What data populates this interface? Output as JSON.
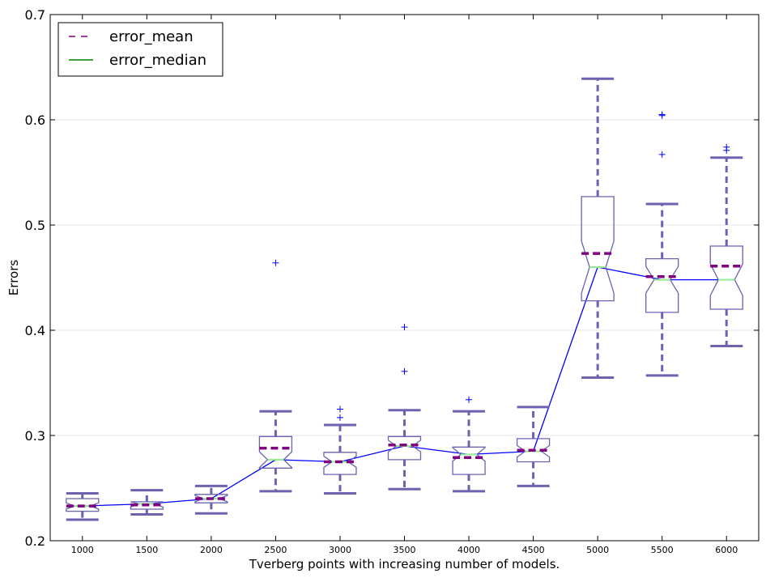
{
  "chart_data": {
    "type": "box",
    "title": "",
    "xlabel": "Tverberg points with increasing number of models.",
    "ylabel": "Errors",
    "ylim": [
      0.2,
      0.7
    ],
    "yticks": [
      0.2,
      0.3,
      0.4,
      0.5,
      0.6,
      0.7
    ],
    "ytick_labels": [
      "0.2",
      "0.3",
      "0.4",
      "0.5",
      "0.6",
      "0.7"
    ],
    "categories": [
      "1000",
      "1500",
      "2000",
      "2500",
      "3000",
      "3500",
      "4000",
      "4500",
      "5000",
      "5500",
      "6000"
    ],
    "grid": "horizontal",
    "legend": {
      "placement": "top-left",
      "entries": [
        {
          "label": "error_mean",
          "style": "dashed",
          "color": "#800080"
        },
        {
          "label": "error_median",
          "style": "solid",
          "color": "#008000"
        }
      ]
    },
    "colors": {
      "box": "#6b62b0",
      "whisker": "#6b62b0",
      "mean": "#800080",
      "median": "#90ee90",
      "median_line": "#0000ff",
      "flier": "#0000ff"
    },
    "boxes": [
      {
        "category": "1000",
        "whislo": 0.22,
        "q1": 0.228,
        "med": 0.233,
        "q3": 0.24,
        "whishi": 0.245,
        "mean": 0.233,
        "fliers": []
      },
      {
        "category": "1500",
        "whislo": 0.225,
        "q1": 0.23,
        "med": 0.235,
        "q3": 0.237,
        "whishi": 0.248,
        "mean": 0.234,
        "fliers": []
      },
      {
        "category": "2000",
        "whislo": 0.226,
        "q1": 0.236,
        "med": 0.24,
        "q3": 0.244,
        "whishi": 0.252,
        "mean": 0.24,
        "fliers": []
      },
      {
        "category": "2500",
        "whislo": 0.247,
        "q1": 0.269,
        "med": 0.277,
        "q3": 0.299,
        "whishi": 0.323,
        "mean": 0.288,
        "fliers": [
          0.464
        ]
      },
      {
        "category": "3000",
        "whislo": 0.245,
        "q1": 0.263,
        "med": 0.275,
        "q3": 0.284,
        "whishi": 0.31,
        "mean": 0.275,
        "fliers": [
          0.317,
          0.325
        ]
      },
      {
        "category": "3500",
        "whislo": 0.249,
        "q1": 0.277,
        "med": 0.29,
        "q3": 0.299,
        "whishi": 0.324,
        "mean": 0.291,
        "fliers": [
          0.361,
          0.403
        ]
      },
      {
        "category": "4000",
        "whislo": 0.247,
        "q1": 0.263,
        "med": 0.282,
        "q3": 0.289,
        "whishi": 0.323,
        "mean": 0.279,
        "fliers": [
          0.334
        ]
      },
      {
        "category": "4500",
        "whislo": 0.252,
        "q1": 0.275,
        "med": 0.285,
        "q3": 0.297,
        "whishi": 0.327,
        "mean": 0.286,
        "fliers": []
      },
      {
        "category": "5000",
        "whislo": 0.355,
        "q1": 0.428,
        "med": 0.46,
        "q3": 0.527,
        "whishi": 0.639,
        "mean": 0.473,
        "fliers": []
      },
      {
        "category": "5500",
        "whislo": 0.357,
        "q1": 0.417,
        "med": 0.448,
        "q3": 0.468,
        "whishi": 0.52,
        "mean": 0.451,
        "fliers": [
          0.567,
          0.604,
          0.605
        ]
      },
      {
        "category": "6000",
        "whislo": 0.385,
        "q1": 0.42,
        "med": 0.448,
        "q3": 0.48,
        "whishi": 0.564,
        "mean": 0.461,
        "fliers": [
          0.571,
          0.574
        ]
      }
    ]
  }
}
